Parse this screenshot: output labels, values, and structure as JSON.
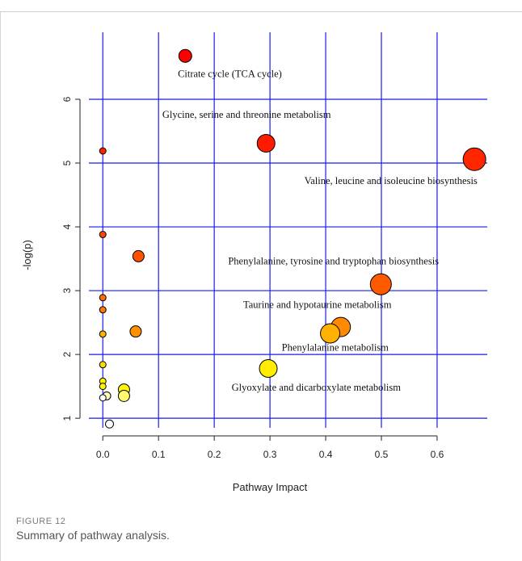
{
  "figure": {
    "label": "FIGURE 12",
    "caption": "Summary of pathway analysis."
  },
  "chart_data": {
    "type": "scatter",
    "xlabel": "Pathway Impact",
    "ylabel": "-log(p)",
    "xlim": [
      -0.025,
      0.69
    ],
    "ylim": [
      0.85,
      7.05
    ],
    "xticks": [
      0.0,
      0.1,
      0.2,
      0.3,
      0.4,
      0.5,
      0.6
    ],
    "yticks": [
      1,
      2,
      3,
      4,
      5,
      6
    ],
    "grid": true,
    "grid_color": "#1a1aee",
    "point_stroke": "#000000",
    "points": [
      {
        "x": 0.148,
        "y": 6.68,
        "size": 8,
        "color": "#ff0000"
      },
      {
        "x": 0.293,
        "y": 5.31,
        "size": 11,
        "color": "#ff1a00"
      },
      {
        "x": 0.667,
        "y": 5.06,
        "size": 14,
        "color": "#ff2600"
      },
      {
        "x": 0.0,
        "y": 5.19,
        "size": 4,
        "color": "#ff2000"
      },
      {
        "x": 0.0,
        "y": 3.88,
        "size": 4,
        "color": "#ff4400"
      },
      {
        "x": 0.064,
        "y": 3.54,
        "size": 7,
        "color": "#ff5200"
      },
      {
        "x": 0.499,
        "y": 3.1,
        "size": 13,
        "color": "#ff5a00"
      },
      {
        "x": 0.0,
        "y": 2.89,
        "size": 4,
        "color": "#ff6e00"
      },
      {
        "x": 0.0,
        "y": 2.7,
        "size": 4,
        "color": "#ff7800"
      },
      {
        "x": 0.427,
        "y": 2.43,
        "size": 12,
        "color": "#ff8a00"
      },
      {
        "x": 0.059,
        "y": 2.36,
        "size": 7,
        "color": "#ff9000"
      },
      {
        "x": 0.408,
        "y": 2.33,
        "size": 12,
        "color": "#ffb000"
      },
      {
        "x": 0.0,
        "y": 2.32,
        "size": 4,
        "color": "#ffb400"
      },
      {
        "x": 0.0,
        "y": 1.84,
        "size": 4,
        "color": "#ffdc00"
      },
      {
        "x": 0.297,
        "y": 1.78,
        "size": 11,
        "color": "#ffec00"
      },
      {
        "x": 0.0,
        "y": 1.58,
        "size": 4,
        "color": "#fff000"
      },
      {
        "x": 0.0,
        "y": 1.5,
        "size": 4,
        "color": "#fff200"
      },
      {
        "x": 0.038,
        "y": 1.45,
        "size": 7,
        "color": "#fff600"
      },
      {
        "x": 0.038,
        "y": 1.35,
        "size": 7,
        "color": "#fffa70"
      },
      {
        "x": 0.007,
        "y": 1.35,
        "size": 5,
        "color": "#fffcc0"
      },
      {
        "x": 0.0,
        "y": 1.32,
        "size": 4,
        "color": "#ffffff"
      },
      {
        "x": 0.012,
        "y": 0.91,
        "size": 5,
        "color": "#ffffff"
      }
    ],
    "annotations": [
      {
        "text": "Citrate cycle (TCA cycle)",
        "x": 0.228,
        "y": 6.35
      },
      {
        "text": "Glycine, serine and threonine metabolism",
        "x": 0.258,
        "y": 5.71
      },
      {
        "text": "Valine, leucine and isoleucine biosynthesis",
        "x": 0.517,
        "y": 4.67
      },
      {
        "text": "Phenylalanine, tyrosine and tryptophan biosynthesis",
        "x": 0.414,
        "y": 3.41
      },
      {
        "text": "Taurine and hypotaurine metabolism",
        "x": 0.385,
        "y": 2.73
      },
      {
        "text": "Phenylalanine metabolism",
        "x": 0.417,
        "y": 2.06
      },
      {
        "text": "Glyoxylate and dicarboxylate metabolism",
        "x": 0.383,
        "y": 1.43
      }
    ]
  }
}
